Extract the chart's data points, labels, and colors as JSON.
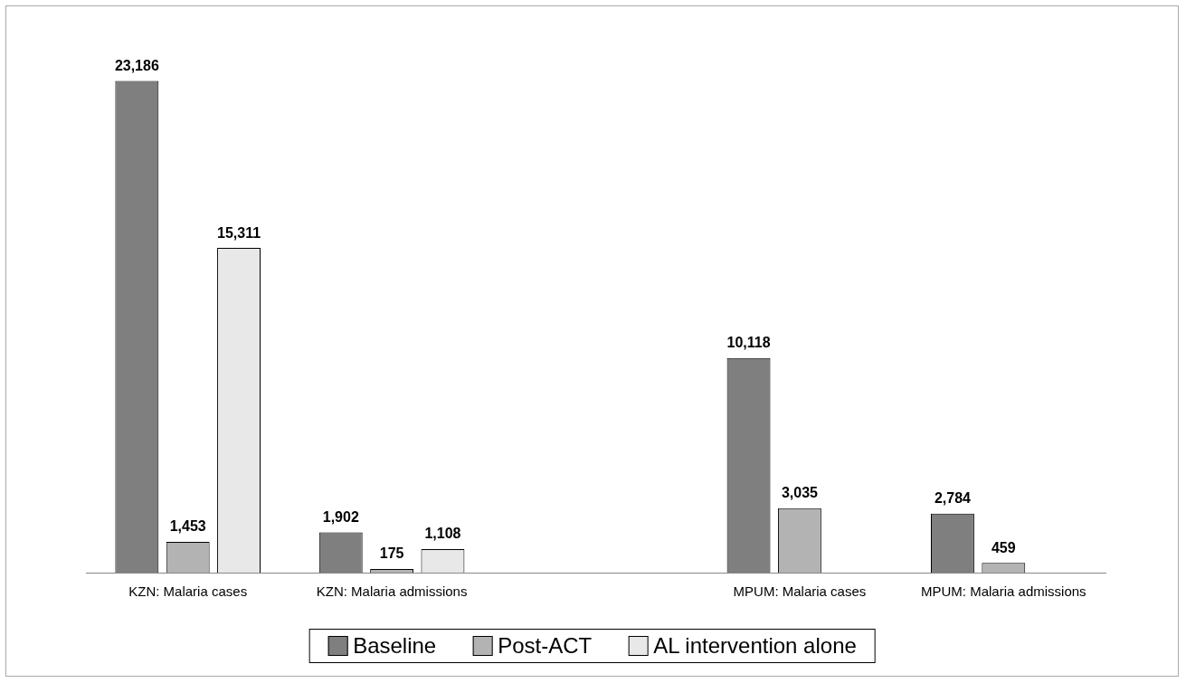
{
  "chart_data": {
    "type": "bar",
    "categories": [
      "KZN: Malaria cases",
      "KZN: Malaria admissions",
      null,
      "MPUM: Malaria cases",
      "MPUM: Malaria admissions"
    ],
    "series": [
      {
        "name": "Baseline",
        "color": "#7f7f7f",
        "values": [
          23186,
          1902,
          null,
          10118,
          2784
        ],
        "value_labels": [
          "23,186",
          "1,902",
          null,
          "10,118",
          "2,784"
        ]
      },
      {
        "name": "Post-ACT",
        "color": "#b3b3b3",
        "values": [
          1453,
          175,
          null,
          3035,
          459
        ],
        "value_labels": [
          "1,453",
          "175",
          null,
          "3,035",
          "459"
        ]
      },
      {
        "name": "AL intervention alone",
        "color": "#e8e8e8",
        "values": [
          15311,
          1108,
          null,
          null,
          null
        ],
        "value_labels": [
          "15,311",
          "1,108",
          null,
          null,
          null
        ]
      }
    ],
    "legend": "bottom"
  }
}
